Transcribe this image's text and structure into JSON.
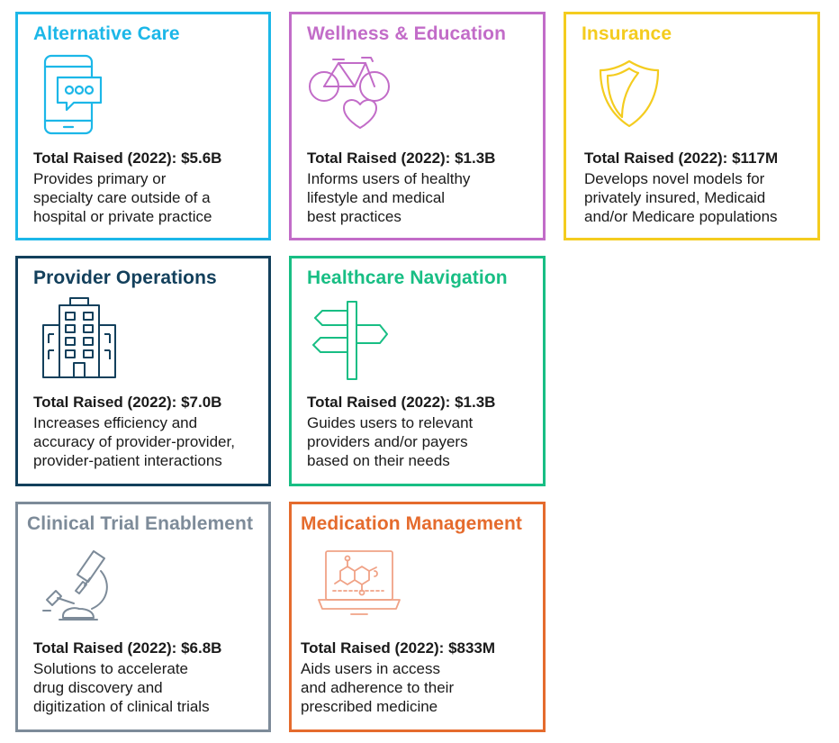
{
  "cards": [
    {
      "title": "Alternative Care",
      "raised": "Total Raised (2022): $5.6B",
      "description": "Provides primary or\nspecialty care outside of a\nhospital or private practice",
      "icon": "smartphone-chat-icon",
      "color": "#1cb7e8"
    },
    {
      "title": "Wellness & Education",
      "raised": "Total Raised (2022): $1.3B",
      "description": "Informs users of healthy\nlifestyle and medical\nbest practices",
      "icon": "bicycle-heart-icon",
      "color": "#c26cc8"
    },
    {
      "title": "Insurance",
      "raised": "Total Raised (2022): $117M",
      "description": "Develops novel models for\nprivately insured, Medicaid\nand/or Medicare populations",
      "icon": "shield-icon",
      "color": "#f4cc1f"
    },
    {
      "title": "Provider Operations",
      "raised": "Total Raised (2022): $7.0B",
      "description": "Increases efficiency and\naccuracy of provider-provider,\nprovider-patient interactions",
      "icon": "hospital-building-icon",
      "color": "#13405c"
    },
    {
      "title": "Healthcare Navigation",
      "raised": "Total Raised (2022): $1.3B",
      "description": "Guides users to relevant\nproviders and/or payers\nbased on their needs",
      "icon": "signpost-icon",
      "color": "#18be84"
    },
    {
      "title": "Clinical Trial Enablement",
      "raised": "Total Raised (2022): $6.8B",
      "description": "Solutions to accelerate\ndrug discovery and\ndigitization of clinical trials",
      "icon": "microscope-icon",
      "color": "#7d8b99"
    },
    {
      "title": "Medication Management",
      "raised": "Total Raised (2022): $833M",
      "description": "Aids users in access\nand adherence to their\nprescribed medicine",
      "icon": "laptop-molecule-icon",
      "color": "#e56b2d"
    }
  ]
}
